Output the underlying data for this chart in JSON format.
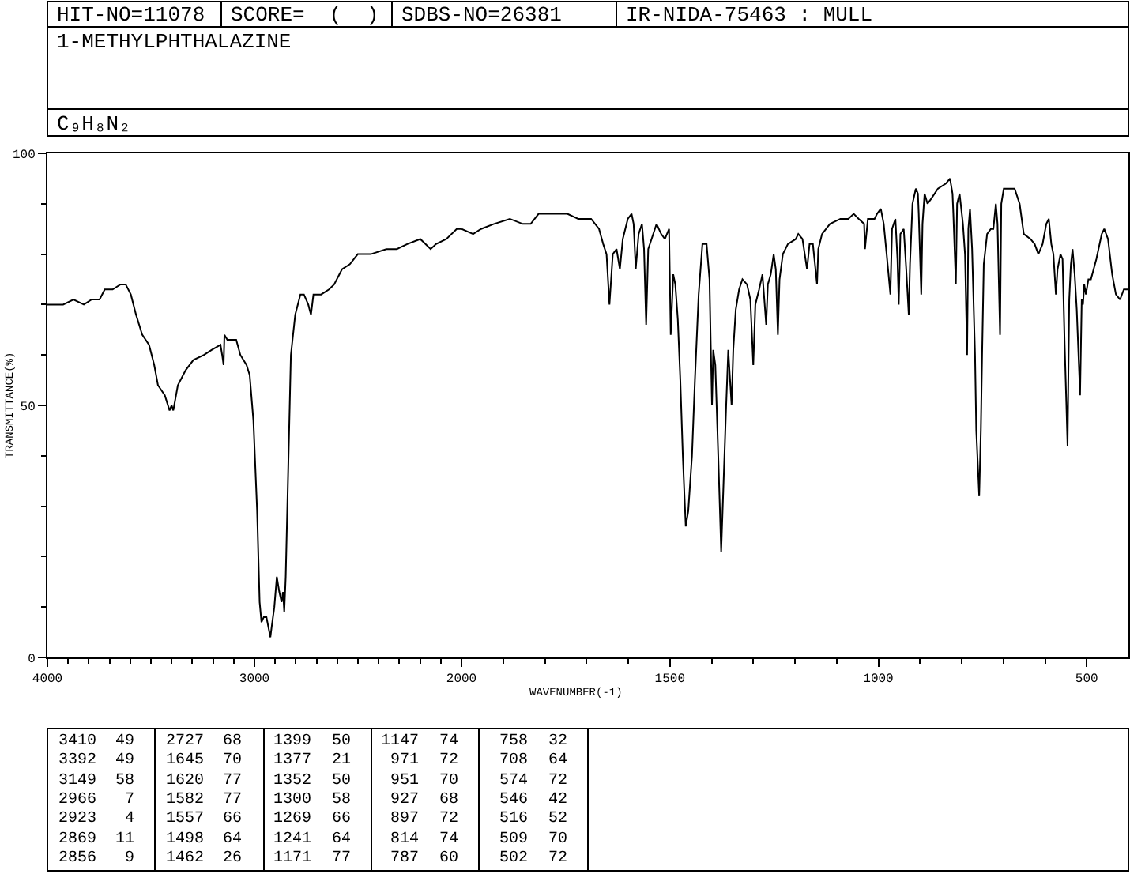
{
  "chart_data": [
    {
      "type": "line",
      "title": "1-METHYLPHTHALAZINE",
      "subtitle": "C₉H₈N₂",
      "ylabel": "TRANSMITTANCE(%)",
      "annotations": [
        "HIT-NO=11078",
        "SCORE=  (  )",
        "SDBS-NO=26381",
        "IR-NIDA-75463 : MULL"
      ],
      "x": [
        4000,
        3924,
        3874,
        3824,
        3786,
        3748,
        3723,
        3685,
        3647,
        3622,
        3597,
        3572,
        3542,
        3509,
        3484,
        3466,
        3433,
        3410,
        3400,
        3392,
        3370,
        3332,
        3295,
        3244,
        3207,
        3164,
        3156,
        3149,
        3145,
        3131,
        3088,
        3068,
        3038,
        3023,
        3005,
        2987,
        2975,
        2966,
        2955,
        2942,
        2923,
        2917,
        2904,
        2892,
        2880,
        2869,
        2862,
        2856,
        2849,
        2841,
        2824,
        2803,
        2778,
        2761,
        2740,
        2727,
        2715,
        2678,
        2640,
        2615,
        2577,
        2539,
        2501,
        2438,
        2363,
        2312,
        2262,
        2199,
        2174,
        2149,
        2123,
        2073,
        2023,
        2000
      ],
      "series": [
        {
          "color": "#000000",
          "values": [
            70,
            70,
            71,
            70,
            71,
            71,
            73,
            73,
            74,
            74,
            72,
            68,
            64,
            62,
            58,
            54,
            52,
            49,
            50,
            49,
            54,
            57,
            59,
            60,
            61,
            62,
            60,
            58,
            64,
            63,
            63,
            60,
            58,
            56,
            47,
            29,
            11,
            7,
            8,
            8,
            4,
            6,
            10,
            16,
            13,
            11,
            13,
            9,
            16,
            30,
            60,
            68,
            72,
            72,
            70,
            68,
            72,
            72,
            73,
            74,
            77,
            78,
            80,
            80,
            81,
            81,
            82,
            83,
            82,
            81,
            82,
            83,
            85,
            85
          ]
        }
      ],
      "xlim": [
        4000,
        2000
      ],
      "xticks": [
        4000,
        {
          "value": 3900,
          "label": null
        },
        {
          "value": 3800,
          "label": null
        },
        {
          "value": 3700,
          "label": null
        },
        {
          "value": 3600,
          "label": null
        },
        {
          "value": 3500,
          "label": null
        },
        {
          "value": 3400,
          "label": null
        },
        {
          "value": 3300,
          "label": null
        },
        {
          "value": 3200,
          "label": null
        },
        {
          "value": 3100,
          "label": null
        },
        3000,
        {
          "value": 2900,
          "label": null
        },
        {
          "value": 2800,
          "label": null
        },
        {
          "value": 2700,
          "label": null
        },
        {
          "value": 2600,
          "label": null
        },
        {
          "value": 2500,
          "label": null
        },
        {
          "value": 2400,
          "label": null
        },
        {
          "value": 2300,
          "label": null
        },
        {
          "value": 2200,
          "label": null
        },
        {
          "value": 2100,
          "label": null
        },
        2000
      ],
      "ylim": [
        0,
        100
      ],
      "yticks": [
        0,
        {
          "value": 10,
          "label": null
        },
        {
          "value": 20,
          "label": null
        },
        {
          "value": 30,
          "label": null
        },
        {
          "value": 40,
          "label": null
        },
        50,
        {
          "value": 60,
          "label": null
        },
        {
          "value": 70,
          "label": null
        },
        {
          "value": 80,
          "label": null
        },
        {
          "value": 90,
          "label": null
        },
        100
      ]
    },
    {
      "type": "line",
      "xlabel": "WAVENUMBER(-1)",
      "x": [
        2000,
        1972,
        1953,
        1922,
        1884,
        1853,
        1834,
        1815,
        1783,
        1746,
        1720,
        1689,
        1670,
        1660,
        1652,
        1645,
        1637,
        1628,
        1620,
        1613,
        1601,
        1592,
        1587,
        1582,
        1575,
        1567,
        1562,
        1557,
        1552,
        1544,
        1532,
        1521,
        1512,
        1502,
        1498,
        1492,
        1487,
        1481,
        1475,
        1469,
        1462,
        1456,
        1447,
        1440,
        1431,
        1422,
        1412,
        1405,
        1402,
        1399,
        1396,
        1391,
        1384,
        1377,
        1372,
        1365,
        1360,
        1352,
        1348,
        1342,
        1334,
        1326,
        1315,
        1307,
        1300,
        1295,
        1286,
        1278,
        1269,
        1265,
        1258,
        1251,
        1246,
        1241,
        1237,
        1229,
        1217,
        1198,
        1192,
        1182,
        1171,
        1165,
        1157,
        1147,
        1144,
        1135,
        1116,
        1091,
        1072,
        1059,
        1047,
        1034,
        1032,
        1025,
        1015,
        1009,
        1003,
        994,
        987,
        980,
        971,
        967,
        959,
        954,
        951,
        947,
        939,
        933,
        927,
        924,
        918,
        910,
        905,
        903,
        897,
        894,
        889,
        882,
        873,
        857,
        838,
        828,
        822,
        820,
        814,
        811,
        805,
        797,
        792,
        787,
        784,
        780,
        775,
        768,
        765,
        758,
        754,
        751,
        747,
        739,
        730,
        724,
        718,
        714,
        708,
        705,
        699,
        686,
        673,
        661,
        651,
        635,
        625,
        616,
        606,
        597,
        591,
        585,
        580,
        574,
        570,
        563,
        558,
        553,
        546,
        542,
        538,
        534,
        529,
        524,
        516,
        512,
        509,
        506,
        502,
        496,
        490,
        477,
        464,
        458,
        449,
        439,
        430,
        420,
        411,
        400
      ],
      "series": [
        {
          "color": "#000000",
          "values": [
            85,
            84,
            85,
            86,
            87,
            86,
            86,
            88,
            88,
            88,
            87,
            87,
            85,
            82,
            80,
            70,
            80,
            81,
            77,
            83,
            87,
            88,
            86,
            77,
            84,
            86,
            81,
            66,
            81,
            83,
            86,
            84,
            83,
            85,
            64,
            76,
            74,
            67,
            55,
            40,
            26,
            29,
            40,
            55,
            72,
            82,
            82,
            75,
            62,
            50,
            61,
            58,
            40,
            21,
            33,
            50,
            61,
            50,
            61,
            69,
            73,
            75,
            74,
            71,
            58,
            70,
            73,
            76,
            66,
            74,
            76,
            80,
            77,
            64,
            75,
            80,
            82,
            83,
            84,
            83,
            77,
            82,
            82,
            74,
            81,
            84,
            86,
            87,
            87,
            88,
            87,
            86,
            81,
            87,
            87,
            87,
            88,
            89,
            86,
            80,
            72,
            85,
            87,
            79,
            70,
            84,
            85,
            77,
            68,
            78,
            90,
            93,
            92,
            88,
            72,
            86,
            92,
            90,
            91,
            93,
            94,
            95,
            92,
            88,
            74,
            90,
            92,
            86,
            80,
            60,
            85,
            89,
            81,
            60,
            45,
            32,
            45,
            60,
            78,
            84,
            85,
            85,
            90,
            86,
            64,
            90,
            93,
            93,
            93,
            90,
            84,
            83,
            82,
            80,
            82,
            86,
            87,
            82,
            80,
            72,
            77,
            80,
            79,
            62,
            42,
            71,
            78,
            81,
            76,
            69,
            52,
            71,
            70,
            74,
            72,
            75,
            75,
            79,
            84,
            85,
            83,
            76,
            72,
            71,
            73,
            73
          ]
        }
      ],
      "xlim": [
        2000,
        400
      ],
      "xticks": [
        {
          "value": 1900,
          "label": null
        },
        {
          "value": 1800,
          "label": null
        },
        {
          "value": 1700,
          "label": null
        },
        {
          "value": 1600,
          "label": null
        },
        1500,
        {
          "value": 1400,
          "label": null
        },
        {
          "value": 1300,
          "label": null
        },
        {
          "value": 1200,
          "label": null
        },
        {
          "value": 1100,
          "label": null
        },
        1000,
        {
          "value": 900,
          "label": null
        },
        {
          "value": 800,
          "label": null
        },
        {
          "value": 700,
          "label": null
        },
        {
          "value": 600,
          "label": null
        },
        500
      ],
      "ylim": [
        0,
        100
      ],
      "tick_labels": "x"
    },
    {
      "type": "other",
      "categories": [
        "3410",
        "3392",
        "3149",
        "2966",
        "2923",
        "2869",
        "2856",
        "2727",
        "1645",
        "1620",
        "1582",
        "1557",
        "1498",
        "1462",
        "1399",
        "1377",
        "1352",
        "1300",
        "1269",
        "1241",
        "1171",
        "1147",
        "971",
        "951",
        "927",
        "897",
        "814",
        "787",
        "758",
        "708",
        "574",
        "546",
        "516",
        "509",
        "502"
      ],
      "values": [
        49,
        49,
        58,
        7,
        4,
        11,
        9,
        68,
        70,
        77,
        77,
        66,
        64,
        26,
        50,
        21,
        50,
        58,
        66,
        64,
        77,
        74,
        72,
        70,
        68,
        72,
        74,
        60,
        32,
        64,
        72,
        42,
        52,
        70,
        72
      ],
      "data_labels": true
    }
  ]
}
